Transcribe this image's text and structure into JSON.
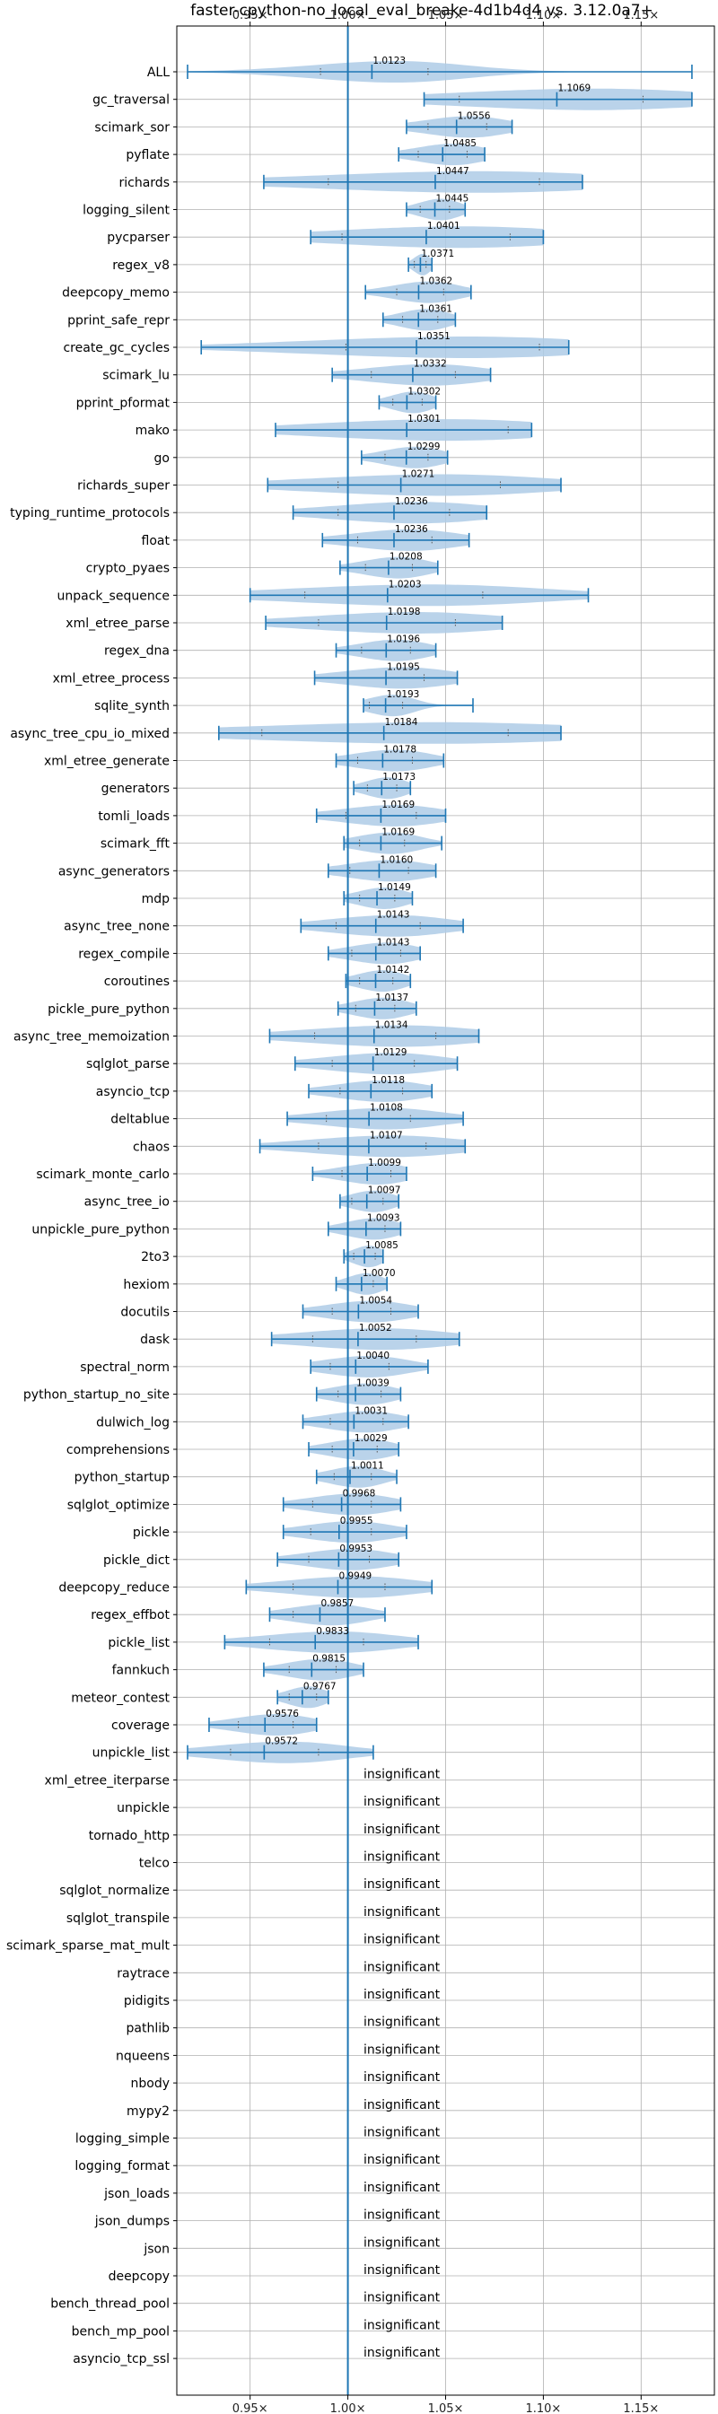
{
  "chart_data": {
    "type": "violin",
    "title": "faster-cpython-no_local_eval_breake-4d1b4d4 vs. 3.12.0a7+",
    "x_ticks": [
      "0.95×",
      "1.00×",
      "1.05×",
      "1.10×",
      "1.15×"
    ],
    "x_tick_values": [
      0.95,
      1.0,
      1.05,
      1.1,
      1.15
    ],
    "xlim": [
      0.9125,
      1.1875
    ],
    "reference_line": 1.0,
    "grid": true,
    "color": "#1f77b4",
    "fill_color": "#aecbe6",
    "significant": [
      {
        "name": "ALL",
        "mean": 1.0123,
        "label": "1.0123",
        "min": 0.918,
        "max": 1.176,
        "q1": 0.986,
        "q3": 1.041
      },
      {
        "name": "gc_traversal",
        "mean": 1.1069,
        "label": "1.1069",
        "min": 1.039,
        "max": 1.176,
        "q1": 1.057,
        "q3": 1.151
      },
      {
        "name": "scimark_sor",
        "mean": 1.0556,
        "label": "1.0556",
        "min": 1.03,
        "max": 1.084,
        "q1": 1.041,
        "q3": 1.071
      },
      {
        "name": "pyflate",
        "mean": 1.0485,
        "label": "1.0485",
        "min": 1.026,
        "max": 1.07,
        "q1": 1.036,
        "q3": 1.061
      },
      {
        "name": "richards",
        "mean": 1.0447,
        "label": "1.0447",
        "min": 0.957,
        "max": 1.12,
        "q1": 0.99,
        "q3": 1.098
      },
      {
        "name": "logging_silent",
        "mean": 1.0445,
        "label": "1.0445",
        "min": 1.03,
        "max": 1.06,
        "q1": 1.037,
        "q3": 1.052
      },
      {
        "name": "pycparser",
        "mean": 1.0401,
        "label": "1.0401",
        "min": 0.981,
        "max": 1.1,
        "q1": 0.997,
        "q3": 1.083
      },
      {
        "name": "regex_v8",
        "mean": 1.0371,
        "label": "1.0371",
        "min": 1.031,
        "max": 1.043,
        "q1": 1.034,
        "q3": 1.04
      },
      {
        "name": "deepcopy_memo",
        "mean": 1.0362,
        "label": "1.0362",
        "min": 1.009,
        "max": 1.063,
        "q1": 1.025,
        "q3": 1.049
      },
      {
        "name": "pprint_safe_repr",
        "mean": 1.0361,
        "label": "1.0361",
        "min": 1.018,
        "max": 1.055,
        "q1": 1.028,
        "q3": 1.046
      },
      {
        "name": "create_gc_cycles",
        "mean": 1.0351,
        "label": "1.0351",
        "min": 0.925,
        "max": 1.113,
        "q1": 0.999,
        "q3": 1.098
      },
      {
        "name": "scimark_lu",
        "mean": 1.0332,
        "label": "1.0332",
        "min": 0.992,
        "max": 1.073,
        "q1": 1.012,
        "q3": 1.055
      },
      {
        "name": "pprint_pformat",
        "mean": 1.0302,
        "label": "1.0302",
        "min": 1.016,
        "max": 1.045,
        "q1": 1.023,
        "q3": 1.038
      },
      {
        "name": "mako",
        "mean": 1.0301,
        "label": "1.0301",
        "min": 0.963,
        "max": 1.094,
        "q1": 1.0,
        "q3": 1.082
      },
      {
        "name": "go",
        "mean": 1.0299,
        "label": "1.0299",
        "min": 1.007,
        "max": 1.051,
        "q1": 1.019,
        "q3": 1.041
      },
      {
        "name": "richards_super",
        "mean": 1.0271,
        "label": "1.0271",
        "min": 0.959,
        "max": 1.109,
        "q1": 0.995,
        "q3": 1.078
      },
      {
        "name": "typing_runtime_protocols",
        "mean": 1.0236,
        "label": "1.0236",
        "min": 0.972,
        "max": 1.071,
        "q1": 0.995,
        "q3": 1.052
      },
      {
        "name": "float",
        "mean": 1.0236,
        "label": "1.0236",
        "min": 0.987,
        "max": 1.062,
        "q1": 1.005,
        "q3": 1.043
      },
      {
        "name": "crypto_pyaes",
        "mean": 1.0208,
        "label": "1.0208",
        "min": 0.996,
        "max": 1.046,
        "q1": 1.009,
        "q3": 1.033
      },
      {
        "name": "unpack_sequence",
        "mean": 1.0203,
        "label": "1.0203",
        "min": 0.95,
        "max": 1.123,
        "q1": 0.978,
        "q3": 1.069
      },
      {
        "name": "xml_etree_parse",
        "mean": 1.0198,
        "label": "1.0198",
        "min": 0.958,
        "max": 1.079,
        "q1": 0.985,
        "q3": 1.055
      },
      {
        "name": "regex_dna",
        "mean": 1.0196,
        "label": "1.0196",
        "min": 0.994,
        "max": 1.045,
        "q1": 1.007,
        "q3": 1.032
      },
      {
        "name": "xml_etree_process",
        "mean": 1.0195,
        "label": "1.0195",
        "min": 0.983,
        "max": 1.056,
        "q1": 1.0,
        "q3": 1.039
      },
      {
        "name": "sqlite_synth",
        "mean": 1.0193,
        "label": "1.0193",
        "min": 1.008,
        "max": 1.064,
        "q1": 1.011,
        "q3": 1.028
      },
      {
        "name": "async_tree_cpu_io_mixed",
        "mean": 1.0184,
        "label": "1.0184",
        "min": 0.934,
        "max": 1.109,
        "q1": 0.956,
        "q3": 1.082
      },
      {
        "name": "xml_etree_generate",
        "mean": 1.0178,
        "label": "1.0178",
        "min": 0.994,
        "max": 1.049,
        "q1": 1.005,
        "q3": 1.033
      },
      {
        "name": "generators",
        "mean": 1.0173,
        "label": "1.0173",
        "min": 1.003,
        "max": 1.032,
        "q1": 1.01,
        "q3": 1.025
      },
      {
        "name": "tomli_loads",
        "mean": 1.0169,
        "label": "1.0169",
        "min": 0.984,
        "max": 1.05,
        "q1": 0.999,
        "q3": 1.035
      },
      {
        "name": "scimark_fft",
        "mean": 1.0169,
        "label": "1.0169",
        "min": 0.998,
        "max": 1.048,
        "q1": 1.006,
        "q3": 1.029
      },
      {
        "name": "async_generators",
        "mean": 1.016,
        "label": "1.0160",
        "min": 0.99,
        "max": 1.045,
        "q1": 1.001,
        "q3": 1.031
      },
      {
        "name": "mdp",
        "mean": 1.0149,
        "label": "1.0149",
        "min": 0.998,
        "max": 1.033,
        "q1": 1.006,
        "q3": 1.024
      },
      {
        "name": "async_tree_none",
        "mean": 1.0143,
        "label": "1.0143",
        "min": 0.976,
        "max": 1.059,
        "q1": 0.994,
        "q3": 1.037
      },
      {
        "name": "regex_compile",
        "mean": 1.0143,
        "label": "1.0143",
        "min": 0.99,
        "max": 1.037,
        "q1": 1.002,
        "q3": 1.027
      },
      {
        "name": "coroutines",
        "mean": 1.0142,
        "label": "1.0142",
        "min": 0.999,
        "max": 1.032,
        "q1": 1.006,
        "q3": 1.023
      },
      {
        "name": "pickle_pure_python",
        "mean": 1.0137,
        "label": "1.0137",
        "min": 0.995,
        "max": 1.035,
        "q1": 1.004,
        "q3": 1.024
      },
      {
        "name": "async_tree_memoization",
        "mean": 1.0134,
        "label": "1.0134",
        "min": 0.96,
        "max": 1.067,
        "q1": 0.983,
        "q3": 1.045
      },
      {
        "name": "sqlglot_parse",
        "mean": 1.0129,
        "label": "1.0129",
        "min": 0.973,
        "max": 1.056,
        "q1": 0.992,
        "q3": 1.034
      },
      {
        "name": "asyncio_tcp",
        "mean": 1.0118,
        "label": "1.0118",
        "min": 0.98,
        "max": 1.043,
        "q1": 0.996,
        "q3": 1.028
      },
      {
        "name": "deltablue",
        "mean": 1.0108,
        "label": "1.0108",
        "min": 0.969,
        "max": 1.059,
        "q1": 0.989,
        "q3": 1.032
      },
      {
        "name": "chaos",
        "mean": 1.0107,
        "label": "1.0107",
        "min": 0.955,
        "max": 1.06,
        "q1": 0.985,
        "q3": 1.04
      },
      {
        "name": "scimark_monte_carlo",
        "mean": 1.0099,
        "label": "1.0099",
        "min": 0.982,
        "max": 1.03,
        "q1": 0.997,
        "q3": 1.022
      },
      {
        "name": "async_tree_io",
        "mean": 1.0097,
        "label": "1.0097",
        "min": 0.996,
        "max": 1.026,
        "q1": 1.002,
        "q3": 1.018
      },
      {
        "name": "unpickle_pure_python",
        "mean": 1.0093,
        "label": "1.0093",
        "min": 0.99,
        "max": 1.027,
        "q1": 1.0,
        "q3": 1.019
      },
      {
        "name": "2to3",
        "mean": 1.0085,
        "label": "1.0085",
        "min": 0.998,
        "max": 1.018,
        "q1": 1.003,
        "q3": 1.014
      },
      {
        "name": "hexiom",
        "mean": 1.007,
        "label": "1.0070",
        "min": 0.994,
        "max": 1.02,
        "q1": 1.0,
        "q3": 1.013
      },
      {
        "name": "docutils",
        "mean": 1.0054,
        "label": "1.0054",
        "min": 0.977,
        "max": 1.036,
        "q1": 0.992,
        "q3": 1.022
      },
      {
        "name": "dask",
        "mean": 1.0052,
        "label": "1.0052",
        "min": 0.961,
        "max": 1.057,
        "q1": 0.982,
        "q3": 1.035
      },
      {
        "name": "spectral_norm",
        "mean": 1.004,
        "label": "1.0040",
        "min": 0.981,
        "max": 1.041,
        "q1": 0.991,
        "q3": 1.021
      },
      {
        "name": "python_startup_no_site",
        "mean": 1.0039,
        "label": "1.0039",
        "min": 0.984,
        "max": 1.027,
        "q1": 0.995,
        "q3": 1.017
      },
      {
        "name": "dulwich_log",
        "mean": 1.0031,
        "label": "1.0031",
        "min": 0.977,
        "max": 1.031,
        "q1": 0.991,
        "q3": 1.018
      },
      {
        "name": "comprehensions",
        "mean": 1.0029,
        "label": "1.0029",
        "min": 0.98,
        "max": 1.026,
        "q1": 0.992,
        "q3": 1.015
      },
      {
        "name": "python_startup",
        "mean": 1.0011,
        "label": "1.0011",
        "min": 0.984,
        "max": 1.025,
        "q1": 0.993,
        "q3": 1.012
      },
      {
        "name": "sqlglot_optimize",
        "mean": 0.9968,
        "label": "0.9968",
        "min": 0.967,
        "max": 1.027,
        "q1": 0.982,
        "q3": 1.012
      },
      {
        "name": "pickle",
        "mean": 0.9955,
        "label": "0.9955",
        "min": 0.967,
        "max": 1.03,
        "q1": 0.981,
        "q3": 1.012
      },
      {
        "name": "pickle_dict",
        "mean": 0.9953,
        "label": "0.9953",
        "min": 0.964,
        "max": 1.026,
        "q1": 0.98,
        "q3": 1.011
      },
      {
        "name": "deepcopy_reduce",
        "mean": 0.9949,
        "label": "0.9949",
        "min": 0.948,
        "max": 1.043,
        "q1": 0.972,
        "q3": 1.019
      },
      {
        "name": "regex_effbot",
        "mean": 0.9857,
        "label": "0.9857",
        "min": 0.96,
        "max": 1.019,
        "q1": 0.972,
        "q3": 1.0
      },
      {
        "name": "pickle_list",
        "mean": 0.9833,
        "label": "0.9833",
        "min": 0.937,
        "max": 1.036,
        "q1": 0.96,
        "q3": 1.008
      },
      {
        "name": "fannkuch",
        "mean": 0.9815,
        "label": "0.9815",
        "min": 0.957,
        "max": 1.008,
        "q1": 0.97,
        "q3": 0.994
      },
      {
        "name": "meteor_contest",
        "mean": 0.9767,
        "label": "0.9767",
        "min": 0.964,
        "max": 0.99,
        "q1": 0.97,
        "q3": 0.984
      },
      {
        "name": "coverage",
        "mean": 0.9576,
        "label": "0.9576",
        "min": 0.929,
        "max": 0.984,
        "q1": 0.944,
        "q3": 0.972
      },
      {
        "name": "unpickle_list",
        "mean": 0.9572,
        "label": "0.9572",
        "min": 0.918,
        "max": 1.013,
        "q1": 0.94,
        "q3": 0.985
      }
    ],
    "insignificant_label": "insignificant",
    "insignificant": [
      "xml_etree_iterparse",
      "unpickle",
      "tornado_http",
      "telco",
      "sqlglot_normalize",
      "sqlglot_transpile",
      "scimark_sparse_mat_mult",
      "raytrace",
      "pidigits",
      "pathlib",
      "nqueens",
      "nbody",
      "mypy2",
      "logging_simple",
      "logging_format",
      "json_loads",
      "json_dumps",
      "json",
      "deepcopy",
      "bench_thread_pool",
      "bench_mp_pool",
      "asyncio_tcp_ssl"
    ]
  }
}
